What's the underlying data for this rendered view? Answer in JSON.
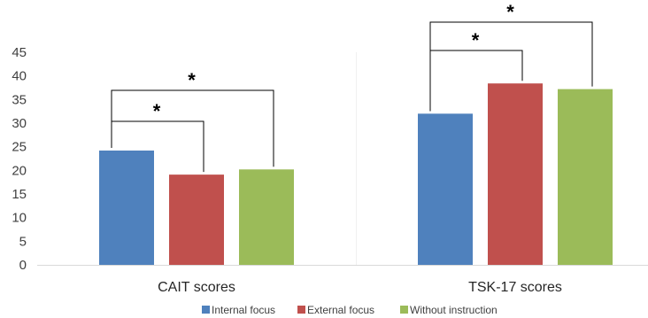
{
  "chart_data": {
    "type": "bar",
    "title": "",
    "xlabel": "",
    "ylabel": "",
    "categories": [
      "CAIT scores",
      "TSK-17 scores"
    ],
    "series": [
      {
        "name": "Internal focus",
        "values": [
          24.2,
          32.0
        ],
        "color": "#4F81BD"
      },
      {
        "name": "External focus",
        "values": [
          19.1,
          38.4
        ],
        "color": "#C0504D"
      },
      {
        "name": "Without instruction",
        "values": [
          20.2,
          37.2
        ],
        "color": "#9BBB59"
      }
    ],
    "ylim": [
      0,
      45
    ],
    "yticks": [
      0,
      5,
      10,
      15,
      20,
      25,
      30,
      35,
      40,
      45
    ],
    "grid": false,
    "legend": "bottom",
    "significance": [
      {
        "category": 0,
        "from": 0,
        "to": 1,
        "label": "*"
      },
      {
        "category": 0,
        "from": 0,
        "to": 2,
        "label": "*"
      },
      {
        "category": 1,
        "from": 0,
        "to": 1,
        "label": "*"
      },
      {
        "category": 1,
        "from": 0,
        "to": 2,
        "label": "*"
      }
    ]
  }
}
